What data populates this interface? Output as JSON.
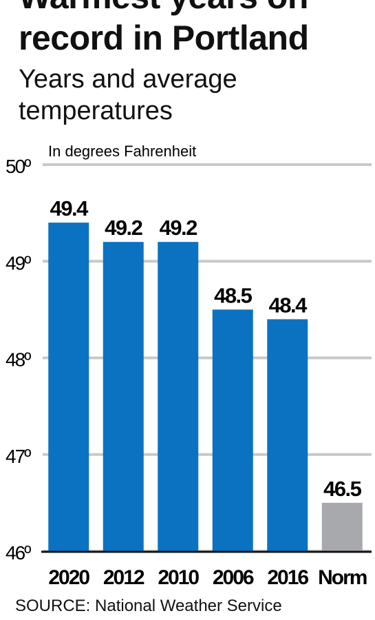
{
  "chart_data": {
    "type": "bar",
    "title": "Warmest years on record in Portland",
    "subtitle": "Years and average temperatures",
    "unit_label": "In degrees Fahrenheit",
    "source": "SOURCE: National Weather Service",
    "categories": [
      "2020",
      "2012",
      "2010",
      "2006",
      "2016",
      "Norm"
    ],
    "values": [
      49.4,
      49.2,
      49.2,
      48.5,
      48.4,
      46.5
    ],
    "colors": [
      "#0b72c2",
      "#0b72c2",
      "#0b72c2",
      "#0b72c2",
      "#0b72c2",
      "#a7a9ac"
    ],
    "ylim": [
      46,
      50
    ],
    "yticks": [
      {
        "value": 46,
        "label": "46º"
      },
      {
        "value": 47,
        "label": "47º"
      },
      {
        "value": 48,
        "label": "48º"
      },
      {
        "value": 49,
        "label": "49º"
      },
      {
        "value": 50,
        "label": "50º"
      }
    ],
    "grid": true
  }
}
